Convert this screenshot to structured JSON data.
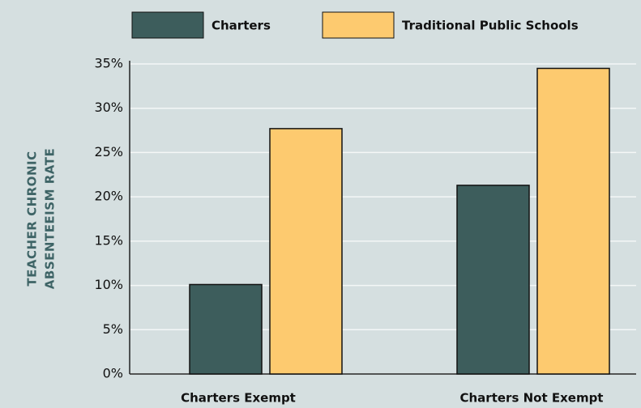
{
  "chart_data": {
    "type": "bar",
    "ylabel": [
      "TEACHER CHRONIC",
      "ABSENTEEISM RATE"
    ],
    "categories": [
      "Charters Exempt",
      "Charters Not Exempt"
    ],
    "series": [
      {
        "name": "Charters",
        "color": "#3d5d5c",
        "values": [
          10.1,
          21.3
        ]
      },
      {
        "name": "Traditional Public Schools",
        "color": "#fdca6f",
        "values": [
          27.7,
          34.5
        ]
      }
    ],
    "ylim": [
      0,
      35
    ],
    "yticks": [
      {
        "value": 0,
        "label": "0%"
      },
      {
        "value": 5,
        "label": "5%"
      },
      {
        "value": 10,
        "label": "10%"
      },
      {
        "value": 15,
        "label": "15%"
      },
      {
        "value": 20,
        "label": "20%"
      },
      {
        "value": 25,
        "label": "25%"
      },
      {
        "value": 30,
        "label": "30%"
      },
      {
        "value": 35,
        "label": "35%"
      }
    ],
    "grid": true
  }
}
